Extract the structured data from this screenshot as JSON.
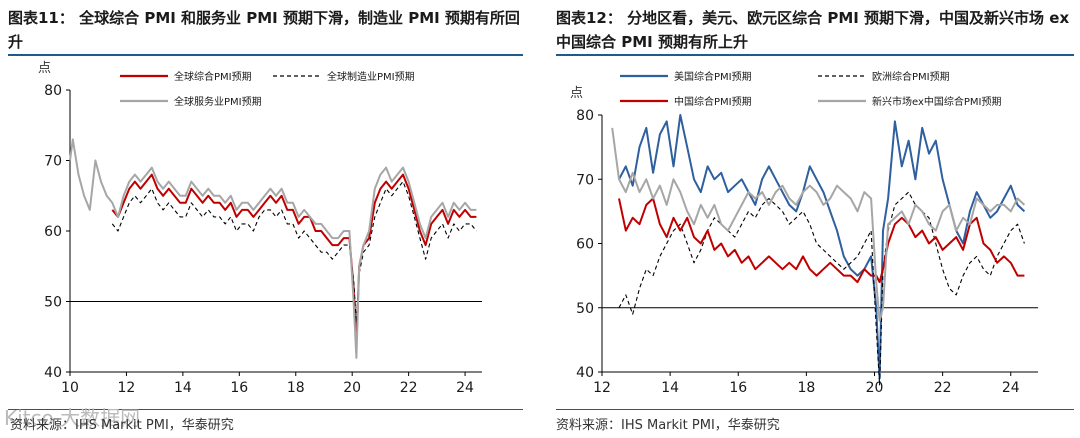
{
  "left": {
    "title": "图表11：  全球综合 PMI 和服务业 PMI 预期下滑，制造业 PMI 预期有所回升",
    "source": "资料来源：IHS Markit PMI，华泰研究",
    "watermark": "Kitco 大数据网",
    "chart_data": {
      "type": "line",
      "ylabel": "点",
      "xlabel": "",
      "ylim": [
        40,
        80
      ],
      "yticks": [
        40,
        50,
        60,
        70,
        80
      ],
      "xlim": [
        10,
        24.6
      ],
      "xticks": [
        "10",
        "12",
        "14",
        "16",
        "18",
        "20",
        "22",
        "24"
      ],
      "legend_position": "top",
      "series": [
        {
          "name": "全球综合PMI预期",
          "color": "#c00000",
          "style": "solid",
          "x": [
            11.5,
            11.7,
            11.9,
            12.1,
            12.3,
            12.5,
            12.7,
            12.9,
            13.1,
            13.3,
            13.5,
            13.7,
            13.9,
            14.1,
            14.3,
            14.5,
            14.7,
            14.9,
            15.1,
            15.3,
            15.5,
            15.7,
            15.9,
            16.1,
            16.3,
            16.5,
            16.7,
            16.9,
            17.1,
            17.3,
            17.5,
            17.7,
            17.9,
            18.1,
            18.3,
            18.5,
            18.7,
            18.9,
            19.1,
            19.3,
            19.5,
            19.7,
            19.9,
            20.05,
            20.15,
            20.25,
            20.4,
            20.6,
            20.8,
            21.0,
            21.2,
            21.4,
            21.6,
            21.8,
            22.0,
            22.2,
            22.4,
            22.6,
            22.8,
            23.0,
            23.2,
            23.4,
            23.6,
            23.8,
            24.0,
            24.2,
            24.4
          ],
          "y": [
            63,
            62,
            64,
            66,
            67,
            66,
            67,
            68,
            66,
            65,
            66,
            65,
            64,
            64,
            66,
            65,
            64,
            65,
            64,
            64,
            63,
            64,
            62,
            63,
            63,
            62,
            63,
            64,
            65,
            64,
            65,
            63,
            63,
            61,
            62,
            62,
            60,
            60,
            59,
            58,
            58,
            59,
            59,
            52,
            44,
            55,
            58,
            59,
            64,
            66,
            67,
            66,
            67,
            68,
            66,
            63,
            60,
            58,
            61,
            62,
            63,
            61,
            63,
            62,
            63,
            62,
            62
          ]
        },
        {
          "name": "全球制造业PMI预期",
          "color": "#000000",
          "style": "dashed",
          "x": [
            11.5,
            11.7,
            11.9,
            12.1,
            12.3,
            12.5,
            12.7,
            12.9,
            13.1,
            13.3,
            13.5,
            13.7,
            13.9,
            14.1,
            14.3,
            14.5,
            14.7,
            14.9,
            15.1,
            15.3,
            15.5,
            15.7,
            15.9,
            16.1,
            16.3,
            16.5,
            16.7,
            16.9,
            17.1,
            17.3,
            17.5,
            17.7,
            17.9,
            18.1,
            18.3,
            18.5,
            18.7,
            18.9,
            19.1,
            19.3,
            19.5,
            19.7,
            19.9,
            20.05,
            20.15,
            20.25,
            20.4,
            20.6,
            20.8,
            21.0,
            21.2,
            21.4,
            21.6,
            21.8,
            22.0,
            22.2,
            22.4,
            22.6,
            22.8,
            23.0,
            23.2,
            23.4,
            23.6,
            23.8,
            24.0,
            24.2,
            24.4
          ],
          "y": [
            61,
            60,
            62,
            64,
            65,
            64,
            65,
            66,
            64,
            63,
            64,
            63,
            62,
            62,
            64,
            63,
            62,
            63,
            62,
            62,
            61,
            62,
            60,
            61,
            61,
            60,
            62,
            63,
            63,
            62,
            63,
            61,
            61,
            59,
            60,
            59,
            58,
            57,
            57,
            56,
            57,
            58,
            58,
            53,
            47,
            54,
            57,
            58,
            62,
            64,
            66,
            65,
            66,
            67,
            65,
            62,
            59,
            56,
            59,
            60,
            61,
            59,
            61,
            60,
            61,
            61,
            60
          ]
        },
        {
          "name": "全球服务业PMI预期",
          "color": "#a6a6a6",
          "style": "solid",
          "x": [
            10.0,
            10.1,
            10.3,
            10.5,
            10.7,
            10.9,
            11.1,
            11.3,
            11.5,
            11.7,
            11.9,
            12.1,
            12.3,
            12.5,
            12.7,
            12.9,
            13.1,
            13.3,
            13.5,
            13.7,
            13.9,
            14.1,
            14.3,
            14.5,
            14.7,
            14.9,
            15.1,
            15.3,
            15.5,
            15.7,
            15.9,
            16.1,
            16.3,
            16.5,
            16.7,
            16.9,
            17.1,
            17.3,
            17.5,
            17.7,
            17.9,
            18.1,
            18.3,
            18.5,
            18.7,
            18.9,
            19.1,
            19.3,
            19.5,
            19.7,
            19.9,
            20.05,
            20.15,
            20.25,
            20.4,
            20.6,
            20.8,
            21.0,
            21.2,
            21.4,
            21.6,
            21.8,
            22.0,
            22.2,
            22.4,
            22.6,
            22.8,
            23.0,
            23.2,
            23.4,
            23.6,
            23.8,
            24.0,
            24.2,
            24.4
          ],
          "y": [
            70,
            73,
            68,
            65,
            63,
            70,
            67,
            65,
            64,
            62,
            65,
            67,
            68,
            67,
            68,
            69,
            67,
            66,
            67,
            66,
            65,
            65,
            67,
            66,
            65,
            66,
            65,
            65,
            64,
            65,
            63,
            64,
            64,
            63,
            64,
            65,
            66,
            65,
            66,
            64,
            64,
            62,
            63,
            62,
            61,
            61,
            60,
            59,
            59,
            60,
            60,
            50,
            42,
            55,
            58,
            60,
            66,
            68,
            69,
            67,
            68,
            69,
            67,
            64,
            61,
            59,
            62,
            63,
            64,
            62,
            64,
            63,
            64,
            63,
            63
          ]
        }
      ]
    }
  },
  "right": {
    "title": "图表12：  分地区看，美元、欧元区综合 PMI 预期下滑，中国及新兴市场 ex 中国综合 PMI 预期有所上升",
    "source": "资料来源：IHS Markit PMI，华泰研究",
    "chart_data": {
      "type": "line",
      "ylabel": "点",
      "xlabel": "",
      "ylim": [
        40,
        80
      ],
      "yticks": [
        40,
        50,
        60,
        70,
        80
      ],
      "xlim": [
        12,
        24.8
      ],
      "xticks": [
        "12",
        "14",
        "16",
        "18",
        "20",
        "22",
        "24"
      ],
      "legend_position": "top",
      "series": [
        {
          "name": "美国综合PMI预期",
          "color": "#2e5f9e",
          "style": "solid",
          "x": [
            12.5,
            12.7,
            12.9,
            13.1,
            13.3,
            13.5,
            13.7,
            13.9,
            14.1,
            14.3,
            14.5,
            14.7,
            14.9,
            15.1,
            15.3,
            15.5,
            15.7,
            15.9,
            16.1,
            16.3,
            16.5,
            16.7,
            16.9,
            17.1,
            17.3,
            17.5,
            17.7,
            17.9,
            18.1,
            18.3,
            18.5,
            18.7,
            18.9,
            19.1,
            19.3,
            19.5,
            19.7,
            19.9,
            20.05,
            20.15,
            20.25,
            20.4,
            20.6,
            20.8,
            21.0,
            21.2,
            21.4,
            21.6,
            21.8,
            22.0,
            22.2,
            22.4,
            22.6,
            22.8,
            23.0,
            23.2,
            23.4,
            23.6,
            23.8,
            24.0,
            24.2,
            24.4
          ],
          "y": [
            70,
            72,
            69,
            75,
            78,
            71,
            77,
            79,
            72,
            80,
            75,
            70,
            68,
            72,
            70,
            71,
            68,
            69,
            70,
            68,
            66,
            70,
            72,
            70,
            68,
            66,
            65,
            68,
            72,
            70,
            68,
            65,
            62,
            58,
            56,
            55,
            56,
            58,
            50,
            39,
            62,
            67,
            79,
            72,
            76,
            70,
            78,
            74,
            76,
            70,
            66,
            62,
            60,
            65,
            68,
            66,
            64,
            65,
            67,
            69,
            66,
            65
          ]
        },
        {
          "name": "欧洲综合PMI预期",
          "color": "#000000",
          "style": "dashed",
          "x": [
            12.5,
            12.7,
            12.9,
            13.1,
            13.3,
            13.5,
            13.7,
            13.9,
            14.1,
            14.3,
            14.5,
            14.7,
            14.9,
            15.1,
            15.3,
            15.5,
            15.7,
            15.9,
            16.1,
            16.3,
            16.5,
            16.7,
            16.9,
            17.1,
            17.3,
            17.5,
            17.7,
            17.9,
            18.1,
            18.3,
            18.5,
            18.7,
            18.9,
            19.1,
            19.3,
            19.5,
            19.7,
            19.9,
            20.05,
            20.15,
            20.25,
            20.4,
            20.6,
            20.8,
            21.0,
            21.2,
            21.4,
            21.6,
            21.8,
            22.0,
            22.2,
            22.4,
            22.6,
            22.8,
            23.0,
            23.2,
            23.4,
            23.6,
            23.8,
            24.0,
            24.2,
            24.4
          ],
          "y": [
            50,
            52,
            49,
            53,
            56,
            55,
            58,
            60,
            62,
            63,
            60,
            57,
            59,
            62,
            64,
            63,
            62,
            61,
            63,
            65,
            64,
            66,
            67,
            66,
            65,
            63,
            64,
            65,
            63,
            60,
            59,
            58,
            57,
            56,
            57,
            58,
            60,
            62,
            47,
            38,
            56,
            62,
            66,
            67,
            68,
            66,
            65,
            64,
            60,
            56,
            53,
            52,
            55,
            57,
            58,
            56,
            55,
            58,
            60,
            62,
            63,
            60
          ]
        },
        {
          "name": "中国综合PMI预期",
          "color": "#c00000",
          "style": "solid",
          "x": [
            12.5,
            12.7,
            12.9,
            13.1,
            13.3,
            13.5,
            13.7,
            13.9,
            14.1,
            14.3,
            14.5,
            14.7,
            14.9,
            15.1,
            15.3,
            15.5,
            15.7,
            15.9,
            16.1,
            16.3,
            16.5,
            16.7,
            16.9,
            17.1,
            17.3,
            17.5,
            17.7,
            17.9,
            18.1,
            18.3,
            18.5,
            18.7,
            18.9,
            19.1,
            19.3,
            19.5,
            19.7,
            19.9,
            20.05,
            20.15,
            20.25,
            20.4,
            20.6,
            20.8,
            21.0,
            21.2,
            21.4,
            21.6,
            21.8,
            22.0,
            22.2,
            22.4,
            22.6,
            22.8,
            23.0,
            23.2,
            23.4,
            23.6,
            23.8,
            24.0,
            24.2,
            24.4
          ],
          "y": [
            67,
            62,
            64,
            63,
            66,
            67,
            63,
            61,
            64,
            62,
            64,
            61,
            60,
            62,
            59,
            60,
            58,
            59,
            57,
            58,
            56,
            57,
            58,
            57,
            56,
            57,
            56,
            58,
            56,
            55,
            56,
            57,
            56,
            55,
            55,
            54,
            56,
            55,
            55,
            54,
            56,
            60,
            63,
            64,
            63,
            61,
            62,
            60,
            61,
            59,
            60,
            61,
            59,
            63,
            64,
            60,
            59,
            57,
            58,
            57,
            55,
            55
          ]
        },
        {
          "name": "新兴市场ex中国综合PMI预期",
          "color": "#a6a6a6",
          "style": "solid",
          "x": [
            12.3,
            12.5,
            12.7,
            12.9,
            13.1,
            13.3,
            13.5,
            13.7,
            13.9,
            14.1,
            14.3,
            14.5,
            14.7,
            14.9,
            15.1,
            15.3,
            15.5,
            15.7,
            15.9,
            16.1,
            16.3,
            16.5,
            16.7,
            16.9,
            17.1,
            17.3,
            17.5,
            17.7,
            17.9,
            18.1,
            18.3,
            18.5,
            18.7,
            18.9,
            19.1,
            19.3,
            19.5,
            19.7,
            19.9,
            20.05,
            20.15,
            20.25,
            20.4,
            20.6,
            20.8,
            21.0,
            21.2,
            21.4,
            21.6,
            21.8,
            22.0,
            22.2,
            22.4,
            22.6,
            22.8,
            23.0,
            23.2,
            23.4,
            23.6,
            23.8,
            24.0,
            24.2,
            24.4
          ],
          "y": [
            78,
            70,
            68,
            71,
            68,
            70,
            67,
            69,
            66,
            70,
            68,
            65,
            63,
            66,
            64,
            66,
            63,
            62,
            64,
            66,
            68,
            67,
            68,
            66,
            68,
            69,
            67,
            66,
            68,
            69,
            68,
            66,
            67,
            69,
            68,
            67,
            65,
            68,
            67,
            54,
            48,
            50,
            63,
            64,
            65,
            63,
            66,
            65,
            63,
            62,
            65,
            66,
            62,
            64,
            63,
            67,
            66,
            65,
            66,
            66,
            65,
            67,
            66
          ]
        }
      ]
    }
  }
}
